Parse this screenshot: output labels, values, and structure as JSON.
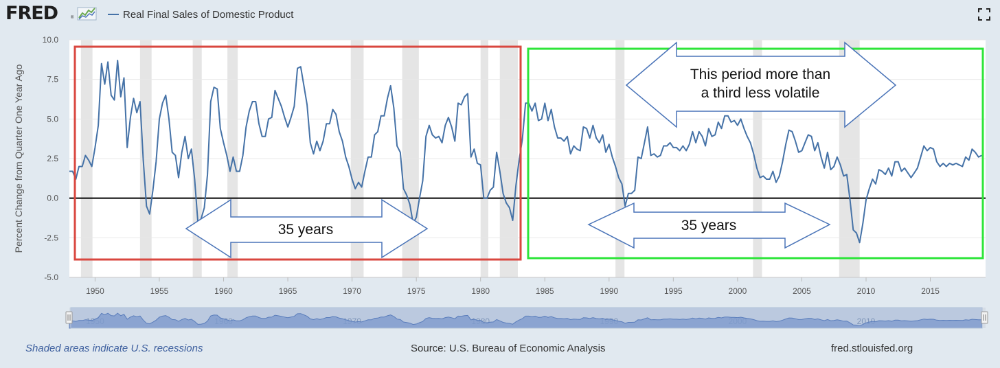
{
  "header": {
    "logo": "FRED",
    "logo_reg": "®",
    "legend_label": "Real Final Sales of Domestic Product"
  },
  "colors": {
    "line": "#4572a7",
    "recession": "#e5e5e5",
    "red_box": "#d9473f",
    "green_box": "#2ee53a",
    "arrow": "#4a74b8",
    "zero": "#000000"
  },
  "chart_data": {
    "type": "line",
    "title": "Real Final Sales of Domestic Product",
    "ylabel": "Percent Change from Quarter One Year Ago",
    "xlabel": "",
    "xlim": [
      1948,
      2019.3
    ],
    "ylim": [
      -5,
      10
    ],
    "yticks": [
      -5,
      -2.5,
      0,
      2.5,
      5,
      7.5,
      10
    ],
    "ytick_labels": [
      "-5.0",
      "-2.5",
      "0.0",
      "2.5",
      "5.0",
      "7.5",
      "10.0"
    ],
    "xticks": [
      1950,
      1955,
      1960,
      1965,
      1970,
      1975,
      1980,
      1985,
      1990,
      1995,
      2000,
      2005,
      2010,
      2015
    ],
    "xtick_labels": [
      "1950",
      "1955",
      "1960",
      "1965",
      "1970",
      "1975",
      "1980",
      "1985",
      "1990",
      "1995",
      "2000",
      "2005",
      "2010",
      "2015"
    ],
    "recessions": [
      [
        1948.9,
        1949.8
      ],
      [
        1953.5,
        1954.4
      ],
      [
        1957.6,
        1958.3
      ],
      [
        1960.3,
        1961.1
      ],
      [
        1969.9,
        1970.9
      ],
      [
        1973.9,
        1975.2
      ],
      [
        1980.0,
        1980.6
      ],
      [
        1981.5,
        1982.9
      ],
      [
        1990.5,
        1991.2
      ],
      [
        2001.2,
        2001.9
      ],
      [
        2007.9,
        2009.5
      ]
    ],
    "series": [
      {
        "name": "Real Final Sales of Domestic Product",
        "points": [
          [
            1948.0,
            1.7
          ],
          [
            1948.25,
            1.7
          ],
          [
            1948.5,
            1.2
          ],
          [
            1948.75,
            2.0
          ],
          [
            1949.0,
            2.0
          ],
          [
            1949.25,
            2.7
          ],
          [
            1949.5,
            2.4
          ],
          [
            1949.75,
            2.0
          ],
          [
            1950.0,
            3.2
          ],
          [
            1950.25,
            4.6
          ],
          [
            1950.5,
            8.5
          ],
          [
            1950.75,
            7.2
          ],
          [
            1951.0,
            8.6
          ],
          [
            1951.25,
            6.5
          ],
          [
            1951.5,
            6.2
          ],
          [
            1951.75,
            8.7
          ],
          [
            1952.0,
            6.4
          ],
          [
            1952.25,
            7.6
          ],
          [
            1952.5,
            3.2
          ],
          [
            1952.75,
            5.1
          ],
          [
            1953.0,
            6.3
          ],
          [
            1953.25,
            5.4
          ],
          [
            1953.5,
            6.1
          ],
          [
            1953.75,
            2.4
          ],
          [
            1954.0,
            -0.5
          ],
          [
            1954.25,
            -1.0
          ],
          [
            1954.5,
            0.5
          ],
          [
            1954.75,
            2.3
          ],
          [
            1955.0,
            5.0
          ],
          [
            1955.25,
            6.0
          ],
          [
            1955.5,
            6.5
          ],
          [
            1955.75,
            5.0
          ],
          [
            1956.0,
            2.9
          ],
          [
            1956.25,
            2.7
          ],
          [
            1956.5,
            1.3
          ],
          [
            1956.75,
            2.9
          ],
          [
            1957.0,
            3.9
          ],
          [
            1957.25,
            2.5
          ],
          [
            1957.5,
            3.1
          ],
          [
            1957.75,
            1.2
          ],
          [
            1958.0,
            -1.5
          ],
          [
            1958.25,
            -1.3
          ],
          [
            1958.5,
            -0.6
          ],
          [
            1958.75,
            1.5
          ],
          [
            1959.0,
            6.1
          ],
          [
            1959.25,
            7.0
          ],
          [
            1959.5,
            6.9
          ],
          [
            1959.75,
            4.4
          ],
          [
            1960.0,
            3.5
          ],
          [
            1960.25,
            2.7
          ],
          [
            1960.5,
            1.7
          ],
          [
            1960.75,
            2.6
          ],
          [
            1961.0,
            1.7
          ],
          [
            1961.25,
            1.7
          ],
          [
            1961.5,
            2.7
          ],
          [
            1961.75,
            4.5
          ],
          [
            1962.0,
            5.5
          ],
          [
            1962.25,
            6.1
          ],
          [
            1962.5,
            6.1
          ],
          [
            1962.75,
            4.7
          ],
          [
            1963.0,
            3.9
          ],
          [
            1963.25,
            3.9
          ],
          [
            1963.5,
            5.0
          ],
          [
            1963.75,
            5.1
          ],
          [
            1964.0,
            6.8
          ],
          [
            1964.25,
            6.3
          ],
          [
            1964.5,
            5.8
          ],
          [
            1964.75,
            5.1
          ],
          [
            1965.0,
            4.5
          ],
          [
            1965.25,
            5.1
          ],
          [
            1965.5,
            5.8
          ],
          [
            1965.75,
            8.2
          ],
          [
            1966.0,
            8.3
          ],
          [
            1966.25,
            7.1
          ],
          [
            1966.5,
            5.9
          ],
          [
            1966.75,
            3.5
          ],
          [
            1967.0,
            2.8
          ],
          [
            1967.25,
            3.6
          ],
          [
            1967.5,
            3.0
          ],
          [
            1967.75,
            3.6
          ],
          [
            1968.0,
            4.7
          ],
          [
            1968.25,
            4.7
          ],
          [
            1968.5,
            5.6
          ],
          [
            1968.75,
            5.3
          ],
          [
            1969.0,
            4.2
          ],
          [
            1969.25,
            3.6
          ],
          [
            1969.5,
            2.6
          ],
          [
            1969.75,
            2.0
          ],
          [
            1970.0,
            1.2
          ],
          [
            1970.25,
            0.6
          ],
          [
            1970.5,
            1.0
          ],
          [
            1970.75,
            0.7
          ],
          [
            1971.0,
            1.7
          ],
          [
            1971.25,
            2.6
          ],
          [
            1971.5,
            2.6
          ],
          [
            1971.75,
            4.0
          ],
          [
            1972.0,
            4.2
          ],
          [
            1972.25,
            5.2
          ],
          [
            1972.5,
            5.2
          ],
          [
            1972.75,
            6.3
          ],
          [
            1973.0,
            7.1
          ],
          [
            1973.25,
            5.7
          ],
          [
            1973.5,
            3.3
          ],
          [
            1973.75,
            2.9
          ],
          [
            1974.0,
            0.6
          ],
          [
            1974.25,
            0.2
          ],
          [
            1974.5,
            -0.4
          ],
          [
            1974.75,
            -1.6
          ],
          [
            1975.0,
            -1.2
          ],
          [
            1975.25,
            0.0
          ],
          [
            1975.5,
            1.1
          ],
          [
            1975.75,
            3.9
          ],
          [
            1976.0,
            4.6
          ],
          [
            1976.25,
            4.0
          ],
          [
            1976.5,
            3.8
          ],
          [
            1976.75,
            3.9
          ],
          [
            1977.0,
            3.5
          ],
          [
            1977.25,
            4.6
          ],
          [
            1977.5,
            5.1
          ],
          [
            1977.75,
            4.5
          ],
          [
            1978.0,
            3.6
          ],
          [
            1978.25,
            6.0
          ],
          [
            1978.5,
            5.9
          ],
          [
            1978.75,
            6.4
          ],
          [
            1979.0,
            6.6
          ],
          [
            1979.25,
            2.6
          ],
          [
            1979.5,
            3.1
          ],
          [
            1979.75,
            2.2
          ],
          [
            1980.0,
            2.1
          ],
          [
            1980.25,
            0.0
          ],
          [
            1980.5,
            0.0
          ],
          [
            1980.75,
            0.5
          ],
          [
            1981.0,
            0.7
          ],
          [
            1981.25,
            2.9
          ],
          [
            1981.5,
            1.7
          ],
          [
            1981.75,
            0.3
          ],
          [
            1982.0,
            -0.3
          ],
          [
            1982.25,
            -0.6
          ],
          [
            1982.5,
            -1.4
          ],
          [
            1982.75,
            0.8
          ],
          [
            1983.0,
            2.4
          ],
          [
            1983.25,
            3.7
          ],
          [
            1983.5,
            6.0
          ],
          [
            1983.75,
            6.0
          ],
          [
            1984.0,
            5.5
          ],
          [
            1984.25,
            6.0
          ],
          [
            1984.5,
            4.9
          ],
          [
            1984.75,
            5.0
          ],
          [
            1985.0,
            6.0
          ],
          [
            1985.25,
            4.9
          ],
          [
            1985.5,
            5.6
          ],
          [
            1985.75,
            4.5
          ],
          [
            1986.0,
            3.8
          ],
          [
            1986.25,
            3.8
          ],
          [
            1986.5,
            3.6
          ],
          [
            1986.75,
            3.9
          ],
          [
            1987.0,
            2.8
          ],
          [
            1987.25,
            3.3
          ],
          [
            1987.5,
            3.1
          ],
          [
            1987.75,
            3.0
          ],
          [
            1988.0,
            4.5
          ],
          [
            1988.25,
            4.4
          ],
          [
            1988.5,
            3.8
          ],
          [
            1988.75,
            4.6
          ],
          [
            1989.0,
            3.8
          ],
          [
            1989.25,
            3.5
          ],
          [
            1989.5,
            4.0
          ],
          [
            1989.75,
            2.9
          ],
          [
            1990.0,
            3.4
          ],
          [
            1990.25,
            2.6
          ],
          [
            1990.5,
            2.0
          ],
          [
            1990.75,
            1.3
          ],
          [
            1991.0,
            0.9
          ],
          [
            1991.25,
            -0.5
          ],
          [
            1991.5,
            0.3
          ],
          [
            1991.75,
            0.3
          ],
          [
            1992.0,
            0.5
          ],
          [
            1992.25,
            2.6
          ],
          [
            1992.5,
            2.5
          ],
          [
            1992.75,
            3.5
          ],
          [
            1993.0,
            4.5
          ],
          [
            1993.25,
            2.7
          ],
          [
            1993.5,
            2.8
          ],
          [
            1993.75,
            2.6
          ],
          [
            1994.0,
            2.7
          ],
          [
            1994.25,
            3.3
          ],
          [
            1994.5,
            3.3
          ],
          [
            1994.75,
            3.5
          ],
          [
            1995.0,
            3.2
          ],
          [
            1995.25,
            3.2
          ],
          [
            1995.5,
            3.0
          ],
          [
            1995.75,
            3.3
          ],
          [
            1996.0,
            3.0
          ],
          [
            1996.25,
            3.4
          ],
          [
            1996.5,
            4.2
          ],
          [
            1996.75,
            3.5
          ],
          [
            1997.0,
            4.2
          ],
          [
            1997.25,
            3.9
          ],
          [
            1997.5,
            3.3
          ],
          [
            1997.75,
            4.4
          ],
          [
            1998.0,
            3.9
          ],
          [
            1998.25,
            4.0
          ],
          [
            1998.5,
            4.8
          ],
          [
            1998.75,
            4.4
          ],
          [
            1999.0,
            5.2
          ],
          [
            1999.25,
            5.2
          ],
          [
            1999.5,
            4.8
          ],
          [
            1999.75,
            4.9
          ],
          [
            2000.0,
            4.6
          ],
          [
            2000.25,
            5.0
          ],
          [
            2000.5,
            4.4
          ],
          [
            2000.75,
            3.9
          ],
          [
            2001.0,
            3.5
          ],
          [
            2001.25,
            2.8
          ],
          [
            2001.5,
            1.9
          ],
          [
            2001.75,
            1.3
          ],
          [
            2002.0,
            1.4
          ],
          [
            2002.25,
            1.2
          ],
          [
            2002.5,
            1.2
          ],
          [
            2002.75,
            1.7
          ],
          [
            2003.0,
            1.0
          ],
          [
            2003.25,
            1.4
          ],
          [
            2003.5,
            2.3
          ],
          [
            2003.75,
            3.4
          ],
          [
            2004.0,
            4.3
          ],
          [
            2004.25,
            4.2
          ],
          [
            2004.5,
            3.6
          ],
          [
            2004.75,
            2.9
          ],
          [
            2005.0,
            3.0
          ],
          [
            2005.25,
            3.5
          ],
          [
            2005.5,
            4.0
          ],
          [
            2005.75,
            3.9
          ],
          [
            2006.0,
            3.0
          ],
          [
            2006.25,
            3.5
          ],
          [
            2006.5,
            2.6
          ],
          [
            2006.75,
            1.9
          ],
          [
            2007.0,
            2.9
          ],
          [
            2007.25,
            1.8
          ],
          [
            2007.5,
            2.0
          ],
          [
            2007.75,
            2.6
          ],
          [
            2008.0,
            2.1
          ],
          [
            2008.25,
            1.4
          ],
          [
            2008.5,
            1.5
          ],
          [
            2008.75,
            -0.1
          ],
          [
            2009.0,
            -2.0
          ],
          [
            2009.25,
            -2.2
          ],
          [
            2009.5,
            -2.8
          ],
          [
            2009.75,
            -1.6
          ],
          [
            2010.0,
            -0.1
          ],
          [
            2010.25,
            0.6
          ],
          [
            2010.5,
            1.2
          ],
          [
            2010.75,
            0.9
          ],
          [
            2011.0,
            1.8
          ],
          [
            2011.25,
            1.7
          ],
          [
            2011.5,
            1.5
          ],
          [
            2011.75,
            1.9
          ],
          [
            2012.0,
            1.4
          ],
          [
            2012.25,
            2.3
          ],
          [
            2012.5,
            2.3
          ],
          [
            2012.75,
            1.7
          ],
          [
            2013.0,
            1.9
          ],
          [
            2013.25,
            1.6
          ],
          [
            2013.5,
            1.3
          ],
          [
            2013.75,
            1.6
          ],
          [
            2014.0,
            1.9
          ],
          [
            2014.25,
            2.6
          ],
          [
            2014.5,
            3.3
          ],
          [
            2014.75,
            3.0
          ],
          [
            2015.0,
            3.2
          ],
          [
            2015.25,
            3.1
          ],
          [
            2015.5,
            2.3
          ],
          [
            2015.75,
            2.0
          ],
          [
            2016.0,
            2.2
          ],
          [
            2016.25,
            2.0
          ],
          [
            2016.5,
            2.2
          ],
          [
            2016.75,
            2.1
          ],
          [
            2017.0,
            2.2
          ],
          [
            2017.25,
            2.1
          ],
          [
            2017.5,
            2.0
          ],
          [
            2017.75,
            2.6
          ],
          [
            2018.0,
            2.4
          ],
          [
            2018.25,
            3.1
          ],
          [
            2018.5,
            2.9
          ],
          [
            2018.75,
            2.6
          ],
          [
            2019.0,
            2.7
          ]
        ]
      }
    ],
    "annotations": {
      "period_note_line1": "This period more than",
      "period_note_line2": "a third less volatile",
      "span_left": "35 years",
      "span_right": "35 years"
    },
    "navigator_labels": [
      "1950",
      "1960",
      "1970",
      "1980",
      "1990",
      "2000",
      "2010"
    ]
  },
  "footer": {
    "note": "Shaded areas indicate U.S. recessions",
    "source": "Source: U.S. Bureau of Economic Analysis",
    "site": "fred.stlouisfed.org"
  }
}
